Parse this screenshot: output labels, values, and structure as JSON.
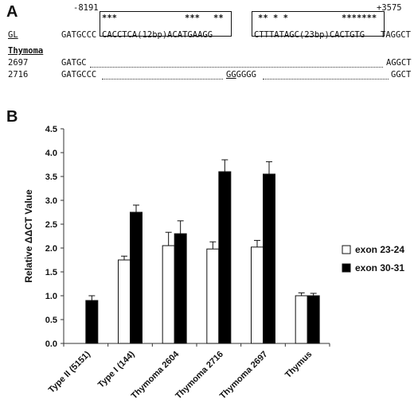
{
  "panel_a": {
    "label": "A",
    "pos_left": "-8191",
    "pos_right": "+3575",
    "stars_left": "***",
    "stars_mid1": "***",
    "stars_mid2": "**",
    "stars_right1": "** * *",
    "stars_right2": "*******",
    "gl_label": "GL",
    "gl_seq_left": "GATGCCC",
    "gl_box1": "CACCTCA(12bp)ACATGAAGG",
    "gl_box2": "CTTTATAGC(23bp)CACTGTG",
    "gl_seq_right": "TAGGCT",
    "thymoma_label": "Thymoma",
    "rows": [
      {
        "id": "2697",
        "start": "GATGC",
        "mid": "",
        "end": "AGGCT"
      },
      {
        "id": "2716",
        "start": "GATGCCC",
        "mid_underlined": "GG",
        "mid": "GGGG",
        "end": "GGCT"
      }
    ]
  },
  "panel_b": {
    "label": "B"
  },
  "chart_data": {
    "type": "bar",
    "ylabel": "Relative ΔΔCT Value",
    "ylim": [
      0,
      4.5
    ],
    "yticks": [
      "0.0",
      "0.5",
      "1.0",
      "1.5",
      "2.0",
      "2.5",
      "3.0",
      "3.5",
      "4.0",
      "4.5"
    ],
    "categories": [
      "Type II (5151)",
      "Type I (144)",
      "Thymoma 2604",
      "Thymoma 2716",
      "Thymoma 2697",
      "Thymus"
    ],
    "series": [
      {
        "name": "exon 23-24",
        "color": "#ffffff",
        "values": [
          null,
          1.75,
          2.05,
          1.98,
          2.02,
          1.0
        ],
        "errors": [
          null,
          0.08,
          0.28,
          0.15,
          0.14,
          0.06
        ]
      },
      {
        "name": "exon 30-31",
        "color": "#000000",
        "values": [
          0.9,
          2.75,
          2.3,
          3.6,
          3.55,
          1.0
        ],
        "errors": [
          0.1,
          0.15,
          0.27,
          0.25,
          0.26,
          0.05
        ]
      }
    ],
    "legend_placement": "right"
  }
}
